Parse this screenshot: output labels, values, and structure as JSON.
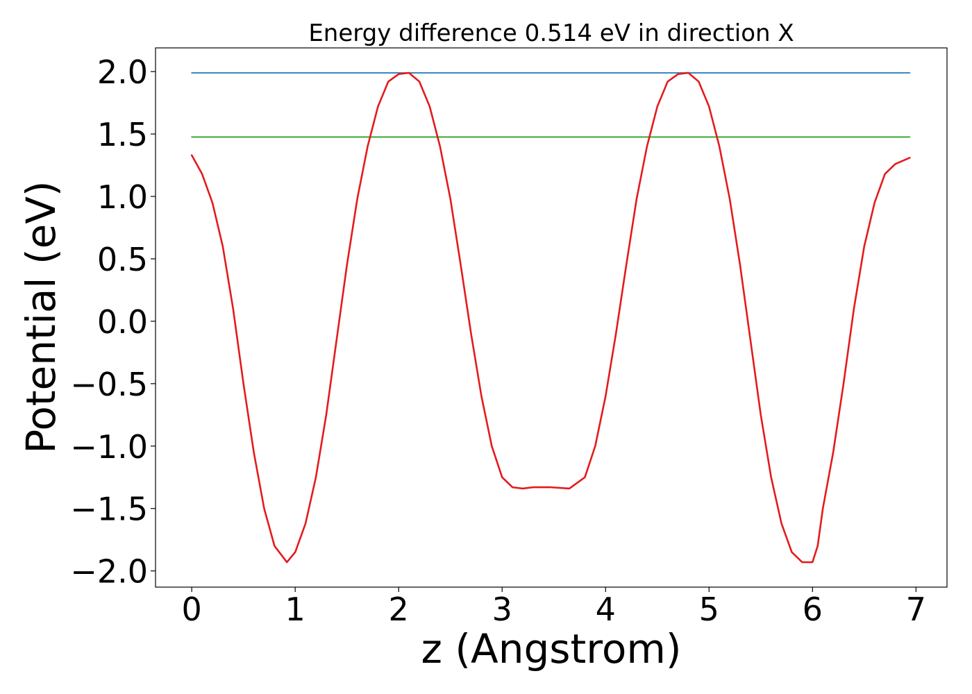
{
  "chart_data": {
    "type": "line",
    "title": "Energy difference 0.514 eV in direction X",
    "xlabel": "z (Angstrom)",
    "ylabel": "Potential (eV)",
    "xlim": [
      -0.35,
      7.3
    ],
    "ylim": [
      -2.13,
      2.19
    ],
    "xticks": [
      0,
      1,
      2,
      3,
      4,
      5,
      6,
      7
    ],
    "xtick_labels": [
      "0",
      "1",
      "2",
      "3",
      "4",
      "5",
      "6",
      "7"
    ],
    "yticks": [
      2.0,
      1.5,
      1.0,
      0.5,
      0.0,
      -0.5,
      -1.0,
      -1.5,
      -2.0
    ],
    "ytick_labels": [
      "2.0",
      "1.5",
      "1.0",
      "0.5",
      "0.0",
      "−0.5",
      "−1.0",
      "−1.5",
      "−2.0"
    ],
    "grid": false,
    "series": [
      {
        "color": "#1f77b4",
        "x": [
          0,
          6.94
        ],
        "y": [
          1.99,
          1.99
        ]
      },
      {
        "color": "#2ca02c",
        "x": [
          0,
          6.94
        ],
        "y": [
          1.476,
          1.476
        ]
      },
      {
        "color": "#e41a1c",
        "x": [
          0,
          0.1,
          0.2,
          0.3,
          0.4,
          0.5,
          0.6,
          0.7,
          0.8,
          0.92,
          1.0,
          1.1,
          1.2,
          1.3,
          1.4,
          1.5,
          1.6,
          1.7,
          1.8,
          1.9,
          2.0,
          2.1,
          2.2,
          2.3,
          2.4,
          2.5,
          2.6,
          2.7,
          2.8,
          2.9,
          3.0,
          3.1,
          3.2,
          3.3,
          3.47,
          3.65,
          3.8,
          3.9,
          4.0,
          4.1,
          4.2,
          4.3,
          4.4,
          4.5,
          4.6,
          4.7,
          4.8,
          4.9,
          5.0,
          5.1,
          5.2,
          5.3,
          5.4,
          5.5,
          5.6,
          5.7,
          5.8,
          5.9,
          6.0,
          6.05,
          6.1,
          6.2,
          6.3,
          6.4,
          6.5,
          6.6,
          6.7,
          6.8,
          6.94
        ],
        "y": [
          1.33,
          1.18,
          0.95,
          0.6,
          0.1,
          -0.5,
          -1.05,
          -1.5,
          -1.8,
          -1.93,
          -1.85,
          -1.62,
          -1.25,
          -0.75,
          -0.15,
          0.45,
          0.98,
          1.4,
          1.72,
          1.92,
          1.98,
          1.99,
          1.92,
          1.72,
          1.4,
          0.98,
          0.45,
          -0.1,
          -0.6,
          -1.0,
          -1.25,
          -1.33,
          -1.34,
          -1.33,
          -1.33,
          -1.34,
          -1.25,
          -1.0,
          -0.6,
          -0.1,
          0.45,
          0.98,
          1.4,
          1.72,
          1.92,
          1.98,
          1.99,
          1.92,
          1.72,
          1.4,
          0.98,
          0.45,
          -0.15,
          -0.75,
          -1.25,
          -1.62,
          -1.85,
          -1.93,
          -1.93,
          -1.8,
          -1.5,
          -1.05,
          -0.5,
          0.1,
          0.6,
          0.95,
          1.18,
          1.26,
          1.31
        ]
      }
    ]
  }
}
